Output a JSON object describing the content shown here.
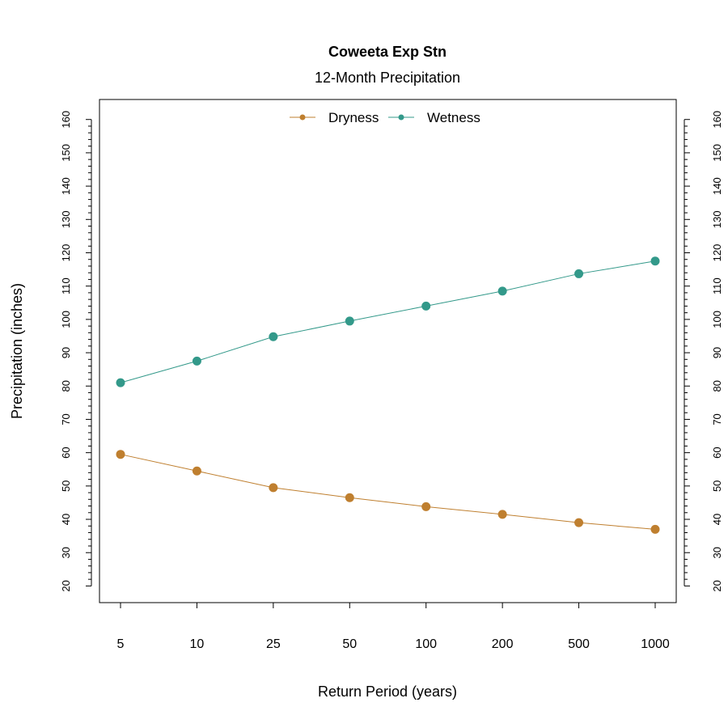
{
  "chart_data": {
    "type": "line",
    "title": "Coweeta Exp Stn",
    "subtitle": "12-Month Precipitation",
    "xlabel": "Return Period (years)",
    "ylabel": "Precipitation (inches)",
    "categories": [
      "5",
      "10",
      "25",
      "50",
      "100",
      "200",
      "500",
      "1000"
    ],
    "ylim": [
      15,
      166
    ],
    "yticks": [
      20,
      30,
      40,
      50,
      60,
      70,
      80,
      90,
      100,
      110,
      120,
      130,
      140,
      150,
      160
    ],
    "legend_position": "top-center",
    "grid": false,
    "series": [
      {
        "name": "Dryness",
        "color": "#bf7f2f",
        "values": [
          59.5,
          54.5,
          49.5,
          46.5,
          43.8,
          41.5,
          39.0,
          37.0
        ]
      },
      {
        "name": "Wetness",
        "color": "#33998a",
        "values": [
          81.0,
          87.5,
          94.8,
          99.5,
          104.0,
          108.5,
          113.7,
          117.5
        ]
      }
    ]
  }
}
